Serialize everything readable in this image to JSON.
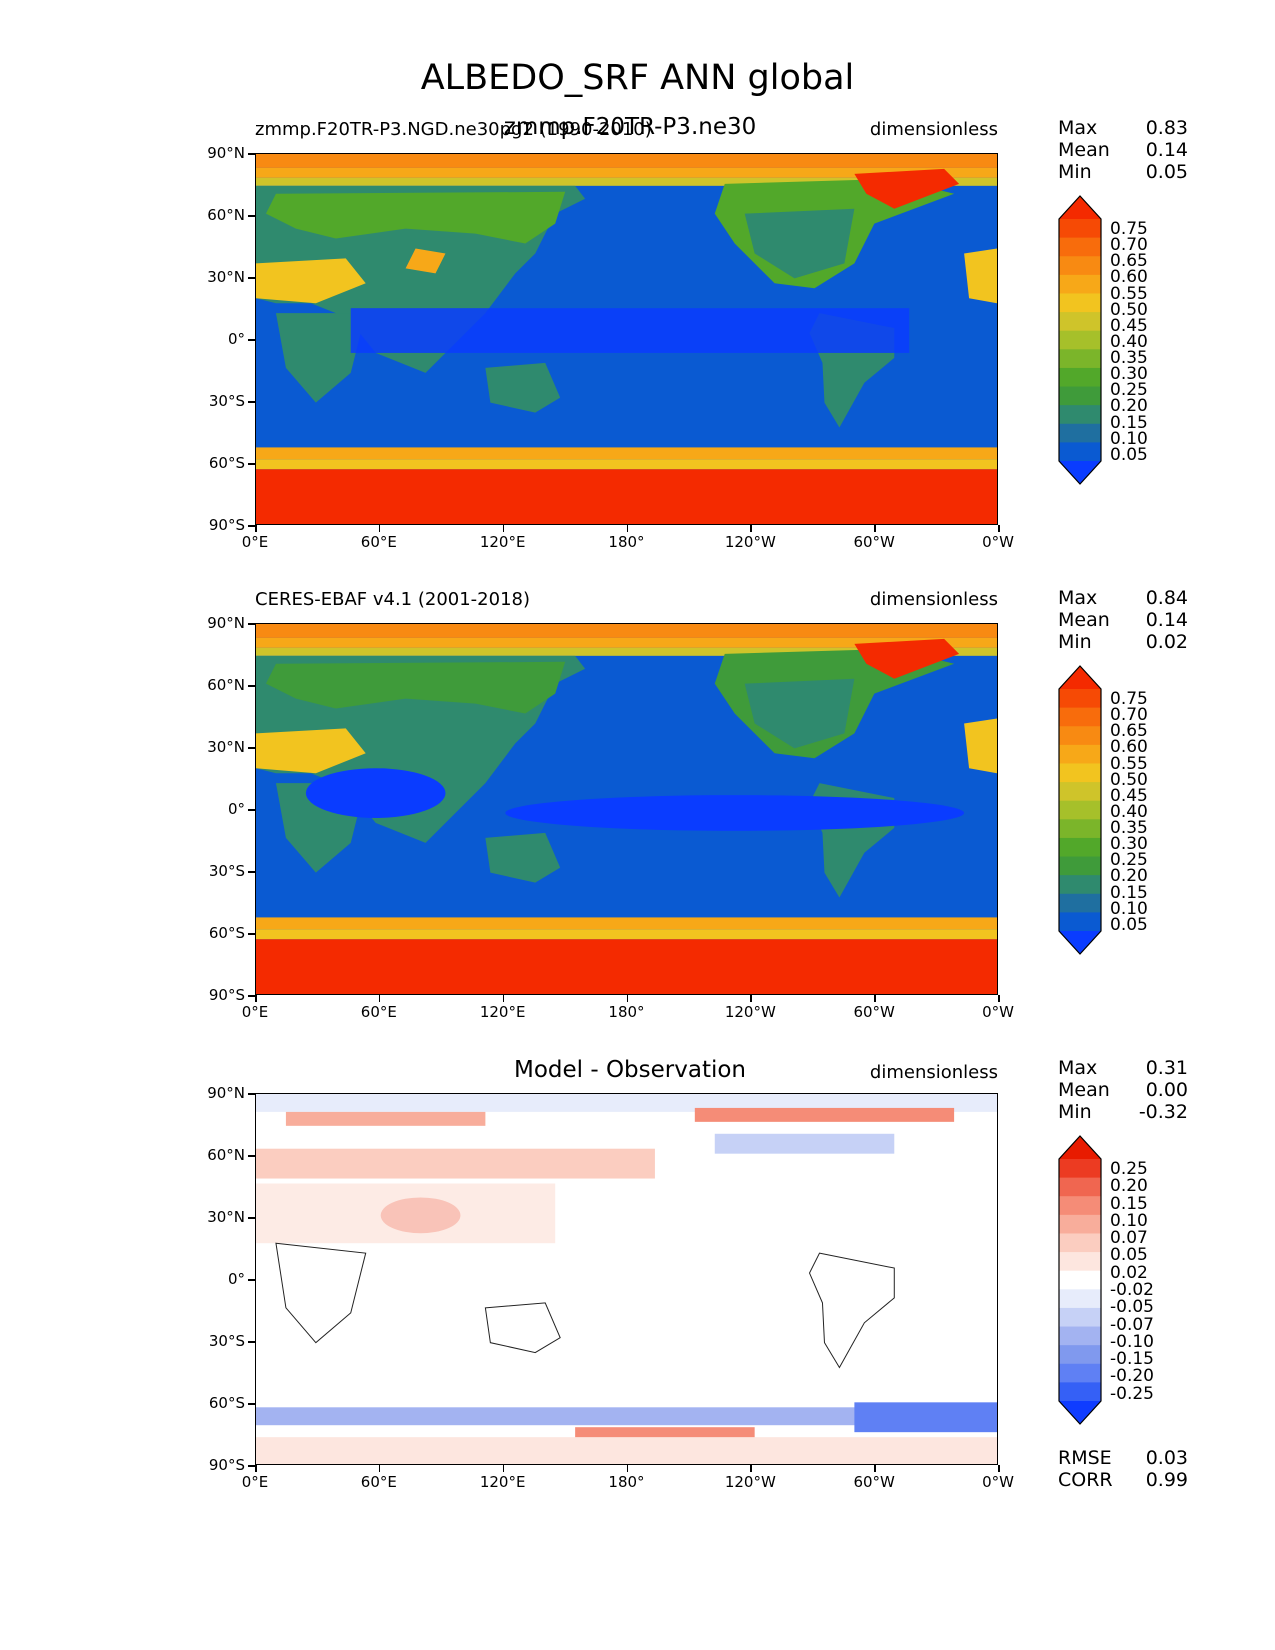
{
  "title": "ALBEDO_SRF ANN global",
  "x_ticks": [
    "0°E",
    "60°E",
    "120°E",
    "180°",
    "120°W",
    "60°W",
    "0°W"
  ],
  "y_ticks": [
    "90°N",
    "60°N",
    "30°N",
    "0°",
    "30°S",
    "60°S",
    "90°S"
  ],
  "colors": {
    "seq": [
      "#0a3cff",
      "#0a5ad2",
      "#1f6fa0",
      "#2f8a6e",
      "#3f9b3a",
      "#52a82a",
      "#7bb52a",
      "#a6c02a",
      "#cfc42a",
      "#f2c41f",
      "#f7a818",
      "#f88a12",
      "#f86c0c",
      "#f64a05",
      "#f42a00"
    ],
    "div": [
      "#0f3cff",
      "#3560f6",
      "#5f80f4",
      "#8099ee",
      "#a3b3f1",
      "#c6d1f6",
      "#e7ecfb",
      "#ffffff",
      "#fde6df",
      "#fbcdc0",
      "#f8ad9b",
      "#f58c77",
      "#f06650",
      "#ec3b22",
      "#e81b00"
    ],
    "land_outline": "#222222"
  },
  "panels": [
    {
      "id": "model",
      "title_left": "zmmp.F20TR-P3.NGD.ne30pg2 (1990-2010)",
      "title_center": "zmmp.F20TR-P3.ne30",
      "units": "dimensionless",
      "stats": [
        {
          "label": "Max",
          "value": "0.83"
        },
        {
          "label": "Mean",
          "value": "0.14"
        },
        {
          "label": "Min",
          "value": "0.05"
        }
      ],
      "colorbar_levels": [
        "0.75",
        "0.70",
        "0.65",
        "0.60",
        "0.55",
        "0.50",
        "0.45",
        "0.40",
        "0.35",
        "0.30",
        "0.25",
        "0.20",
        "0.15",
        "0.10",
        "0.05"
      ],
      "scale": "seq"
    },
    {
      "id": "obs",
      "title_left": "CERES-EBAF v4.1 (2001-2018)",
      "title_center": "",
      "units": "dimensionless",
      "stats": [
        {
          "label": "Max",
          "value": "0.84"
        },
        {
          "label": "Mean",
          "value": "0.14"
        },
        {
          "label": "Min",
          "value": "0.02"
        }
      ],
      "colorbar_levels": [
        "0.75",
        "0.70",
        "0.65",
        "0.60",
        "0.55",
        "0.50",
        "0.45",
        "0.40",
        "0.35",
        "0.30",
        "0.25",
        "0.20",
        "0.15",
        "0.10",
        "0.05"
      ],
      "scale": "seq"
    },
    {
      "id": "diff",
      "title_left": "",
      "title_center": "Model - Observation",
      "units": "dimensionless",
      "stats": [
        {
          "label": "Max",
          "value": "0.31"
        },
        {
          "label": "Mean",
          "value": "0.00"
        },
        {
          "label": "Min",
          "value": "-0.32"
        }
      ],
      "colorbar_levels": [
        "0.25",
        "0.20",
        "0.15",
        "0.10",
        "0.07",
        "0.05",
        "0.02",
        "-0.02",
        "-0.05",
        "-0.07",
        "-0.10",
        "-0.15",
        "-0.20",
        "-0.25"
      ],
      "scale": "div",
      "extra_stats": [
        {
          "label": "RMSE",
          "value": "0.03"
        },
        {
          "label": "CORR",
          "value": "0.99"
        }
      ]
    }
  ]
}
